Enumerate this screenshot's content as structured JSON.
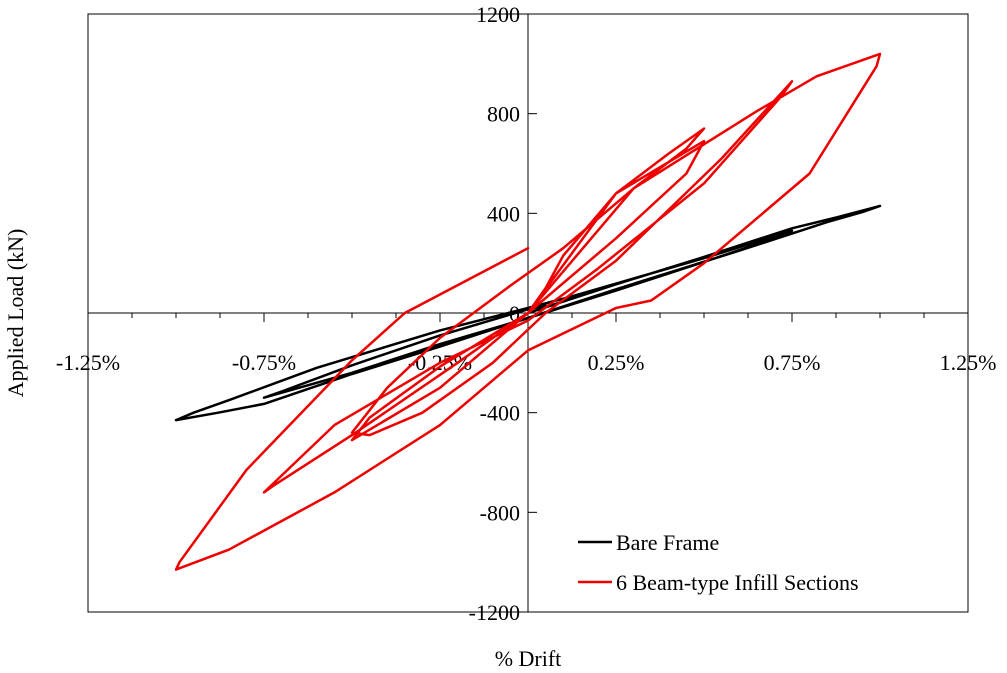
{
  "chart_data": {
    "type": "line",
    "xlabel": "% Drift",
    "ylabel": "Applied Load (kN)",
    "xlim": [
      -1.25,
      1.25
    ],
    "ylim": [
      -1200,
      1200
    ],
    "x_ticks": [
      -1.25,
      -0.75,
      -0.25,
      0.25,
      0.75,
      1.25
    ],
    "x_tick_labels": [
      "-1.25%",
      "-0.75%",
      "-0.25%",
      "0.25%",
      "0.75%",
      "1.25%"
    ],
    "y_ticks": [
      -1200,
      -800,
      -400,
      0,
      400,
      800,
      1200
    ],
    "y_tick_labels": [
      "-1200",
      "-800",
      "-400",
      "0",
      "400",
      "800",
      "1200"
    ],
    "grid": false,
    "legend_position": "bottom-right",
    "series": [
      {
        "name": "Bare Frame",
        "color": "#000000",
        "x": [
          0,
          0.25,
          0.5,
          0.75,
          0.88,
          1.0,
          0.95,
          0.85,
          0.6,
          0.25,
          0,
          -0.25,
          -0.5,
          -0.75,
          -0.88,
          -1.0,
          -0.95,
          -0.85,
          -0.6,
          -0.25,
          0,
          0.12,
          0.5,
          0.75,
          0.7,
          0.5,
          0.25,
          0,
          -0.25,
          -0.5,
          -0.75,
          -0.7,
          -0.5,
          -0.25,
          0,
          0.05
        ],
        "y": [
          0,
          115,
          225,
          340,
          385,
          430,
          405,
          365,
          250,
          95,
          -20,
          -135,
          -245,
          -365,
          -400,
          -430,
          -400,
          -350,
          -220,
          -70,
          20,
          65,
          220,
          330,
          300,
          205,
          90,
          -20,
          -125,
          -240,
          -340,
          -315,
          -210,
          -90,
          15,
          30
        ]
      },
      {
        "name": "6 Beam-type Infill Sections",
        "color": "#ee0000",
        "x": [
          0,
          0.25,
          0.5,
          0.45,
          0.25,
          0,
          -0.25,
          -0.5,
          -0.45,
          -0.25,
          0,
          0.05,
          0.1,
          0.25,
          0.4,
          0.5,
          0.45,
          0.3,
          0.1,
          -0.05,
          -0.25,
          -0.4,
          -0.5,
          -0.45,
          -0.3,
          -0.1,
          0.05,
          0.25,
          0.55,
          0.75,
          0.72,
          0.5,
          0.2,
          0,
          -0.25,
          -0.55,
          -0.75,
          -0.72,
          -0.5,
          -0.2,
          0,
          0.3,
          0.65,
          0.82,
          1.0,
          0.99,
          0.8,
          0.5,
          0.35,
          0.25,
          0,
          -0.25,
          -0.55,
          -0.85,
          -1.0,
          -0.99,
          -0.8,
          -0.5,
          -0.35,
          0
        ],
        "y": [
          0,
          480,
          690,
          560,
          300,
          0,
          -300,
          -510,
          -420,
          -215,
          0,
          100,
          230,
          480,
          640,
          740,
          660,
          500,
          260,
          110,
          -100,
          -300,
          -480,
          -490,
          -400,
          -200,
          0,
          210,
          620,
          930,
          870,
          520,
          180,
          -30,
          -200,
          -450,
          -720,
          -690,
          -490,
          -200,
          0,
          500,
          810,
          950,
          1040,
          990,
          560,
          200,
          50,
          20,
          -150,
          -450,
          -720,
          -950,
          -1030,
          -1000,
          -630,
          -190,
          0,
          260
        ]
      }
    ]
  }
}
